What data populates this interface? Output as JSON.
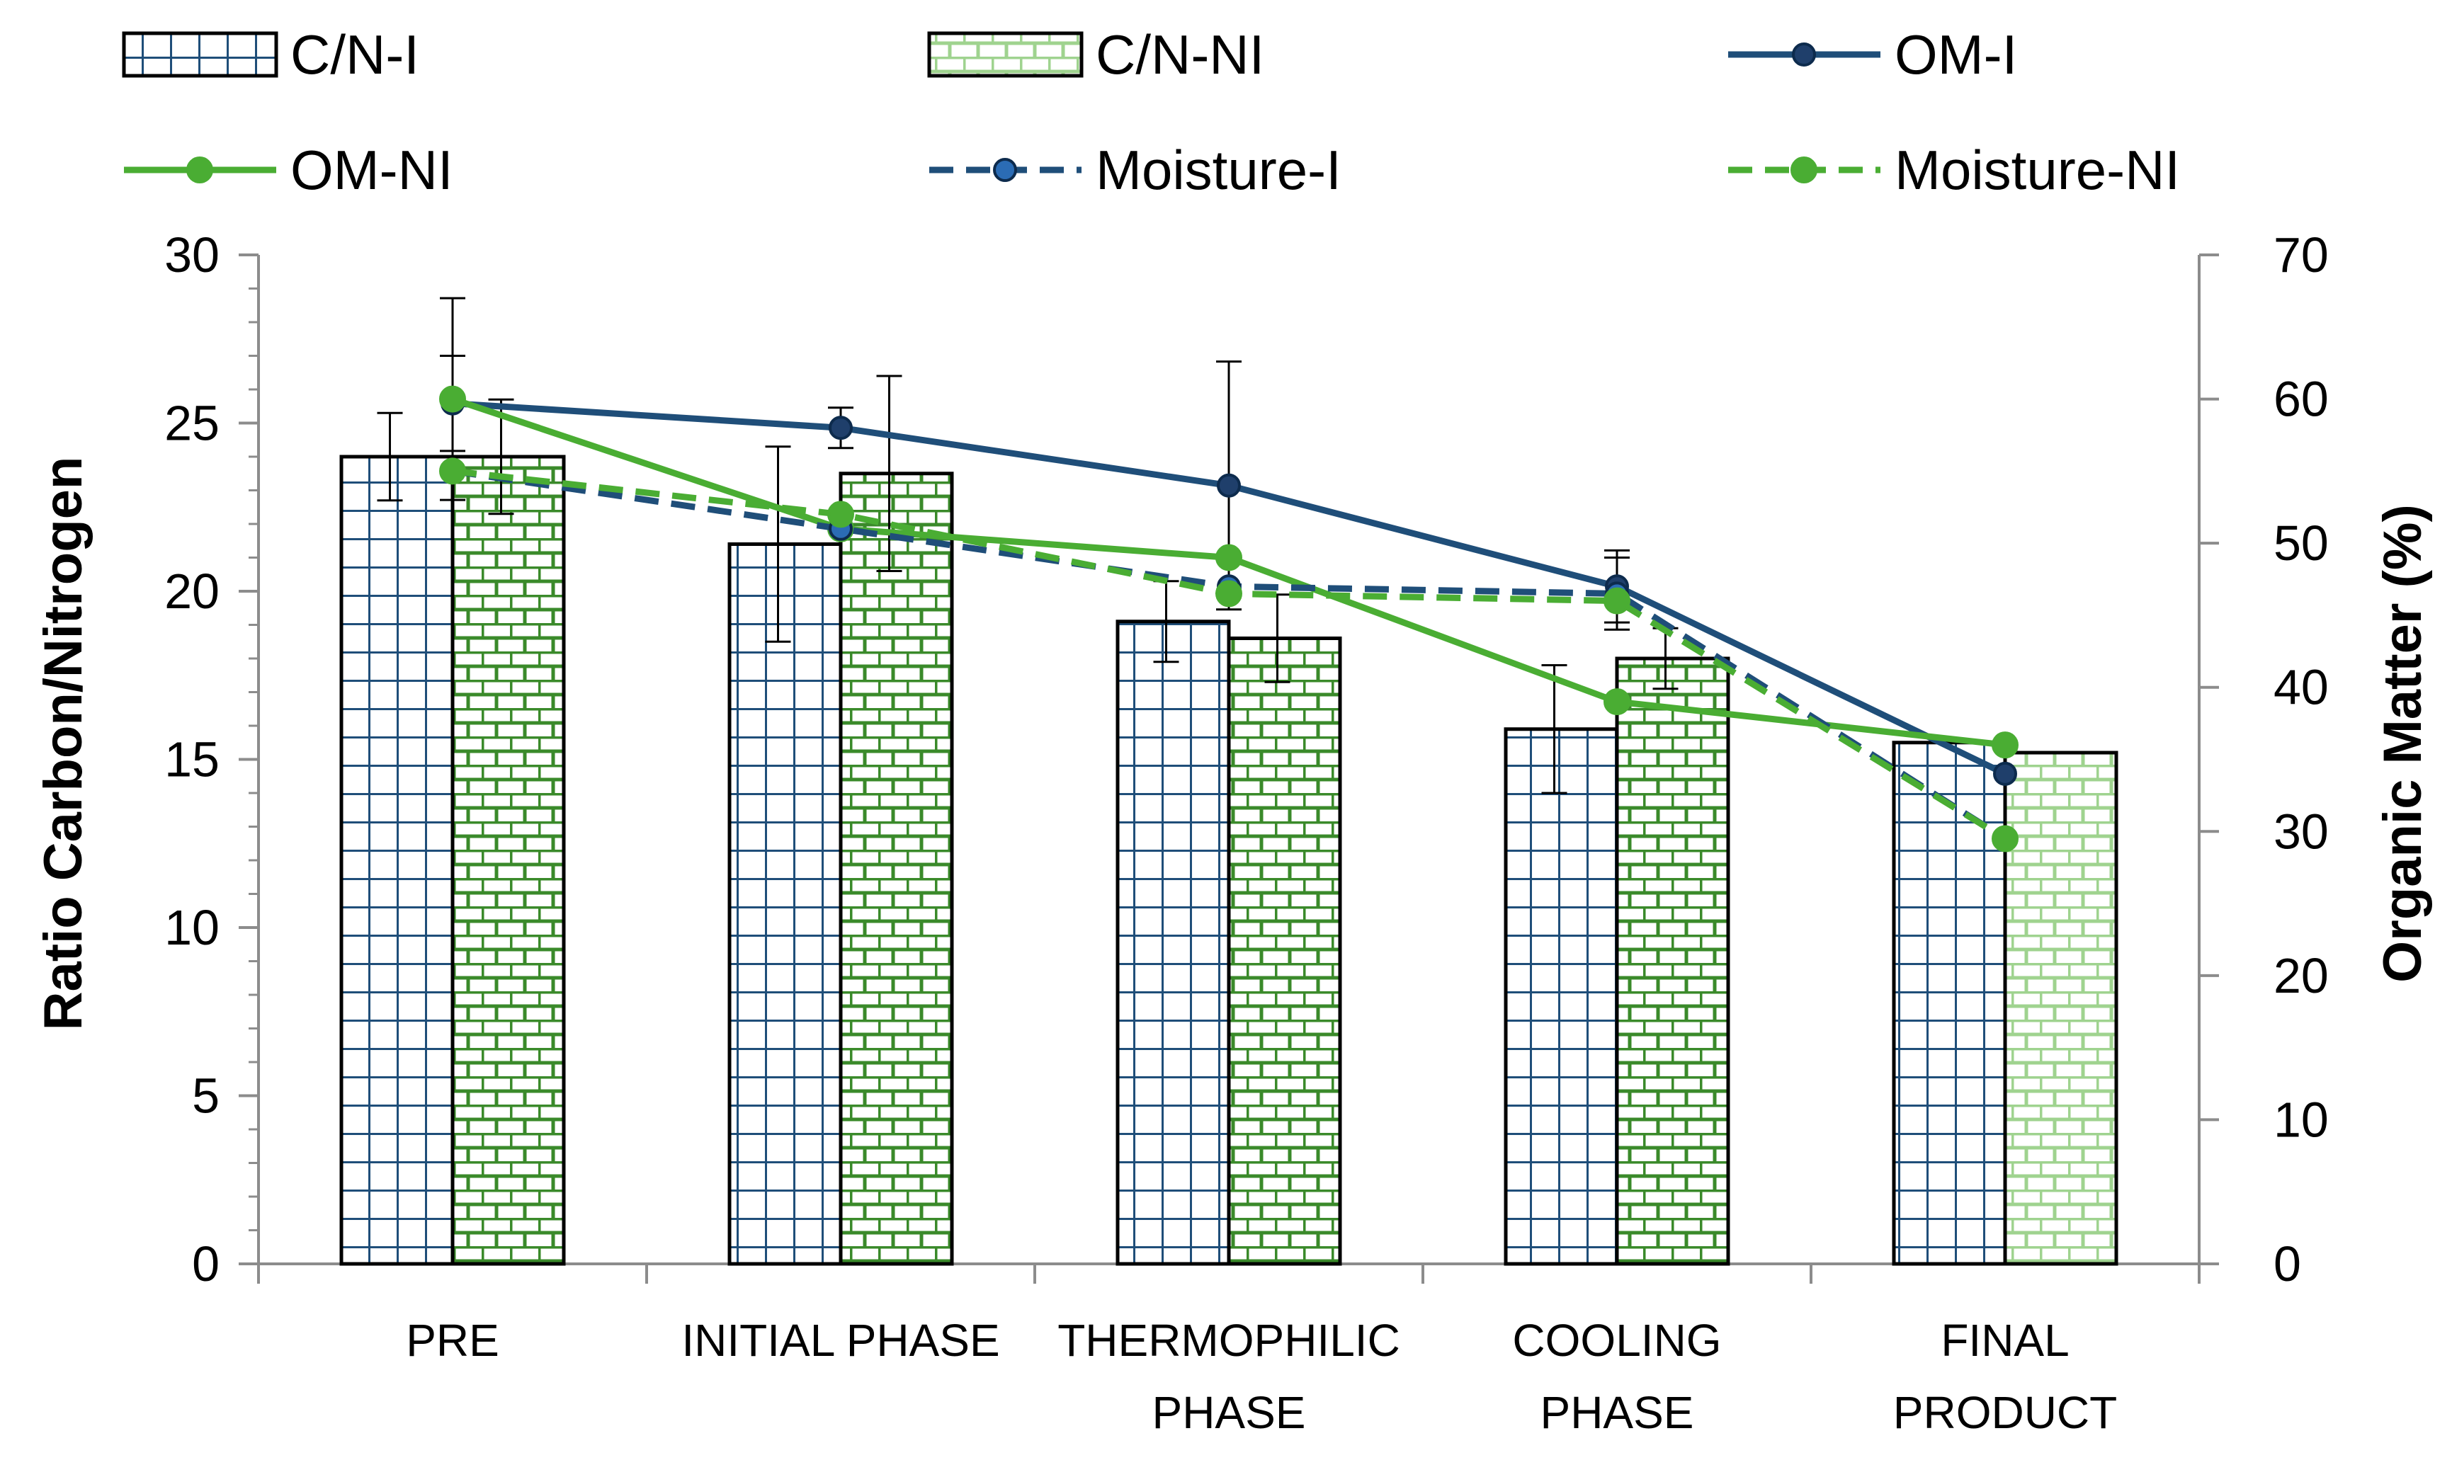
{
  "chart_data": {
    "type": "bar",
    "categories": [
      [
        "PRE"
      ],
      [
        "INITIAL PHASE"
      ],
      [
        "THERMOPHILIC",
        "PHASE"
      ],
      [
        "COOLING",
        "PHASE"
      ],
      [
        "FINAL",
        "PRODUCT"
      ]
    ],
    "ylabel": "Ratio Carbon/Nitrogen",
    "ylim": [
      0,
      30
    ],
    "yticks": [
      0,
      5,
      10,
      15,
      20,
      25,
      30
    ],
    "y2label": "Organic Matter (%)",
    "y2lim": [
      0,
      70
    ],
    "y2ticks": [
      0,
      10,
      20,
      30,
      40,
      50,
      60,
      70
    ],
    "legend_position": "top",
    "grid": false,
    "bar_series": [
      {
        "name": "C/N-I",
        "axis": "left",
        "pattern": "grid",
        "color": "#1f4e79",
        "values": [
          24.0,
          21.4,
          19.1,
          15.9,
          15.5
        ],
        "errors": [
          1.3,
          2.9,
          1.2,
          1.9,
          0
        ]
      },
      {
        "name": "C/N-NI",
        "axis": "left",
        "pattern": "brick",
        "color": "#3a9a2a",
        "values": [
          24.0,
          23.5,
          18.6,
          18.0,
          15.2
        ],
        "errors": [
          1.7,
          2.9,
          1.3,
          0.9,
          0
        ]
      }
    ],
    "line_series": [
      {
        "name": "OM-I",
        "axis": "right",
        "style": "solid",
        "color": "#1f4e79",
        "values": [
          59.7,
          58.0,
          54.0,
          47.0,
          34.0
        ],
        "errors": [
          3.3,
          1.4,
          8.6,
          2.5,
          0
        ]
      },
      {
        "name": "OM-NI",
        "axis": "right",
        "style": "solid",
        "color": "#4aad33",
        "values": [
          60.0,
          51.0,
          49.0,
          39.0,
          36.0
        ],
        "errors": [
          7.0,
          0,
          0,
          0,
          0
        ]
      },
      {
        "name": "Moisture-I",
        "axis": "right",
        "style": "dashed",
        "color": "#1f4e79",
        "values": [
          55.0,
          51.0,
          47.0,
          46.5,
          29.5
        ],
        "errors": [
          0,
          0,
          0,
          2.5,
          0
        ]
      },
      {
        "name": "Moisture-NI",
        "axis": "right",
        "style": "dashed",
        "color": "#4aad33",
        "values": [
          55.0,
          52.0,
          46.5,
          46.0,
          29.5
        ],
        "errors": [
          0,
          0,
          0,
          0,
          0
        ]
      }
    ]
  }
}
